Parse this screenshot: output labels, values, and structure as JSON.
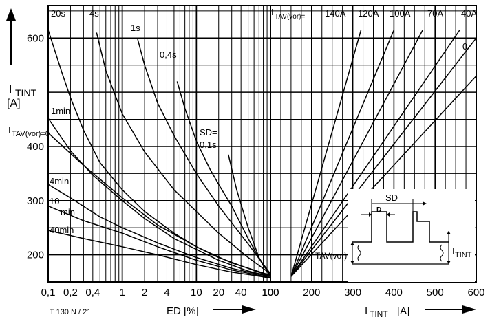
{
  "chart_data": [
    {
      "type": "line",
      "panel": "left",
      "x_scale": "log",
      "xlabel": "ED [%]",
      "ylabel_main": "I",
      "ylabel_sub": "TINT",
      "ylabel_unit": "[A]",
      "x_ticks": [
        "0,1",
        "0,2",
        "0,4",
        "1",
        "2",
        "4",
        "10",
        "20",
        "40",
        "100"
      ],
      "y_ticks": [
        "200",
        "300",
        "400",
        "500",
        "600"
      ],
      "y_tick_labels": [
        "200",
        "300",
        "400",
        "",
        "600"
      ],
      "xlim": [
        0.1,
        100
      ],
      "ylim": [
        150,
        660
      ],
      "grid": true,
      "code_label": "T 130 N / 21",
      "series": [
        {
          "name": "20s",
          "x": [
            0.1,
            0.15,
            0.2,
            0.3,
            0.5,
            1,
            2,
            5,
            10,
            20,
            50,
            100
          ],
          "y": [
            615,
            540,
            490,
            430,
            370,
            320,
            280,
            240,
            215,
            195,
            175,
            160
          ]
        },
        {
          "name": "4s",
          "x": [
            0.45,
            0.6,
            1,
            2,
            5,
            10,
            20,
            50,
            100
          ],
          "y": [
            610,
            540,
            460,
            390,
            320,
            280,
            240,
            195,
            165
          ]
        },
        {
          "name": "1s",
          "x": [
            1.6,
            2,
            3,
            5,
            10,
            20,
            50,
            100
          ],
          "y": [
            600,
            550,
            480,
            420,
            350,
            290,
            220,
            165
          ]
        },
        {
          "name": "0,4s",
          "x": [
            5.5,
            7,
            10,
            15,
            20,
            30,
            50,
            80,
            100
          ],
          "y": [
            520,
            470,
            410,
            360,
            330,
            290,
            230,
            180,
            165
          ]
        },
        {
          "name": "SD=0,1s",
          "x": [
            27,
            35,
            50,
            70,
            100
          ],
          "y": [
            385,
            320,
            250,
            195,
            160
          ]
        },
        {
          "name": "1min",
          "x": [
            0.1,
            0.2,
            0.4,
            1,
            2,
            5,
            10,
            20,
            50,
            100
          ],
          "y": [
            452,
            392,
            347,
            300,
            267,
            230,
            210,
            190,
            170,
            160
          ]
        },
        {
          "name": "I_TAV(vor)=0",
          "x": [
            0.1,
            0.3,
            1,
            3,
            10,
            30,
            60,
            100
          ],
          "y": [
            425,
            365,
            305,
            255,
            215,
            185,
            172,
            162
          ]
        },
        {
          "name": "4min",
          "x": [
            0.1,
            0.2,
            0.5,
            1,
            3,
            10,
            30,
            60,
            100
          ],
          "y": [
            330,
            305,
            270,
            250,
            222,
            195,
            175,
            166,
            160
          ]
        },
        {
          "name": "10 min",
          "x": [
            0.1,
            0.3,
            1,
            3,
            10,
            30,
            60,
            100
          ],
          "y": [
            290,
            263,
            240,
            215,
            190,
            172,
            164,
            158
          ]
        },
        {
          "name": "40min",
          "x": [
            0.1,
            0.3,
            1,
            3,
            10,
            30,
            60,
            100
          ],
          "y": [
            245,
            230,
            215,
            200,
            182,
            168,
            162,
            157
          ]
        }
      ],
      "series_labels": [
        {
          "text": "20s",
          "series": "20s"
        },
        {
          "text": "4s",
          "series": "4s"
        },
        {
          "text": "1s",
          "series": "1s"
        },
        {
          "text": "0,4s",
          "series": "0,4s"
        },
        {
          "text": "SD=",
          "series": "SD=0,1s"
        },
        {
          "text": "0,1s",
          "series": "SD=0,1s"
        },
        {
          "text": "1min",
          "series": "1min"
        },
        {
          "text": "I",
          "series": "I_TAV(vor)=0"
        },
        {
          "text": "TAV(vor)=0",
          "series": "I_TAV(vor)=0"
        },
        {
          "text": "4min",
          "series": "4min"
        },
        {
          "text": "10",
          "series": "10 min"
        },
        {
          "text": "min",
          "series": "10 min"
        },
        {
          "text": "40min",
          "series": "40min"
        }
      ]
    },
    {
      "type": "line",
      "panel": "right",
      "xlabel_main": "I",
      "xlabel_sub": "TINT",
      "xlabel_unit": "[A]",
      "x_ticks": [
        100,
        200,
        300,
        400,
        500,
        600
      ],
      "x_tick_labels": [
        "100",
        "200",
        "300",
        "400",
        "500",
        "600"
      ],
      "xlim": [
        100,
        600
      ],
      "ylim": [
        150,
        660
      ],
      "grid": true,
      "legend_title_main": "I",
      "legend_title_sub": "TAV(vor)=",
      "series": [
        {
          "name": "140A",
          "x": [
            150,
            320
          ],
          "y": [
            160,
            615
          ]
        },
        {
          "name": "120A",
          "x": [
            150,
            400
          ],
          "y": [
            160,
            615
          ]
        },
        {
          "name": "100A",
          "x": [
            150,
            470
          ],
          "y": [
            160,
            615
          ]
        },
        {
          "name": "70A",
          "x": [
            150,
            560
          ],
          "y": [
            160,
            615
          ]
        },
        {
          "name": "40A",
          "x": [
            150,
            600
          ],
          "y": [
            160,
            600
          ]
        },
        {
          "name": "0",
          "x": [
            150,
            600
          ],
          "y": [
            160,
            530
          ]
        }
      ],
      "inset": {
        "label_sd": "SD",
        "label_d": "D",
        "label_tav_sub": "TAV(vor)",
        "label_tint_main": "I",
        "label_tint_sub": "TINT"
      }
    }
  ]
}
